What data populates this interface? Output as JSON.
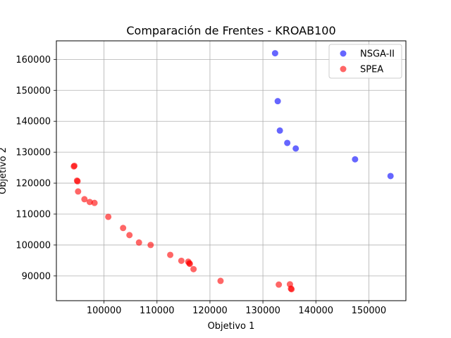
{
  "chart_data": {
    "type": "scatter",
    "title": "Comparación de Frentes - KROAB100",
    "xlabel": "Objetivo 1",
    "ylabel": "Objetivo 2",
    "xlim": [
      91000,
      157000
    ],
    "ylim": [
      82000,
      166000
    ],
    "xticks": [
      100000,
      110000,
      120000,
      130000,
      140000,
      150000
    ],
    "yticks": [
      90000,
      100000,
      110000,
      120000,
      130000,
      140000,
      150000,
      160000
    ],
    "grid": true,
    "legend_position": "top-right",
    "series": [
      {
        "name": "NSGA-II",
        "color": "#0000ff",
        "points": [
          [
            132300,
            162000
          ],
          [
            132800,
            146500
          ],
          [
            133200,
            137000
          ],
          [
            134600,
            133000
          ],
          [
            136200,
            131200
          ],
          [
            147400,
            127700
          ],
          [
            154100,
            122300
          ]
        ]
      },
      {
        "name": "SPEA",
        "color": "#ff0000",
        "points": [
          [
            94300,
            125400
          ],
          [
            94400,
            125600
          ],
          [
            94900,
            120800
          ],
          [
            95000,
            120600
          ],
          [
            95100,
            117300
          ],
          [
            96300,
            114800
          ],
          [
            97300,
            113900
          ],
          [
            98200,
            113600
          ],
          [
            100800,
            109100
          ],
          [
            103600,
            105500
          ],
          [
            104800,
            103200
          ],
          [
            106600,
            100800
          ],
          [
            108800,
            100000
          ],
          [
            112500,
            96800
          ],
          [
            114600,
            94900
          ],
          [
            115900,
            94600
          ],
          [
            116100,
            94100
          ],
          [
            116200,
            93900
          ],
          [
            116900,
            92200
          ],
          [
            122000,
            88400
          ],
          [
            133000,
            87200
          ],
          [
            135100,
            87300
          ],
          [
            135300,
            85900
          ],
          [
            135400,
            85700
          ]
        ]
      }
    ]
  }
}
